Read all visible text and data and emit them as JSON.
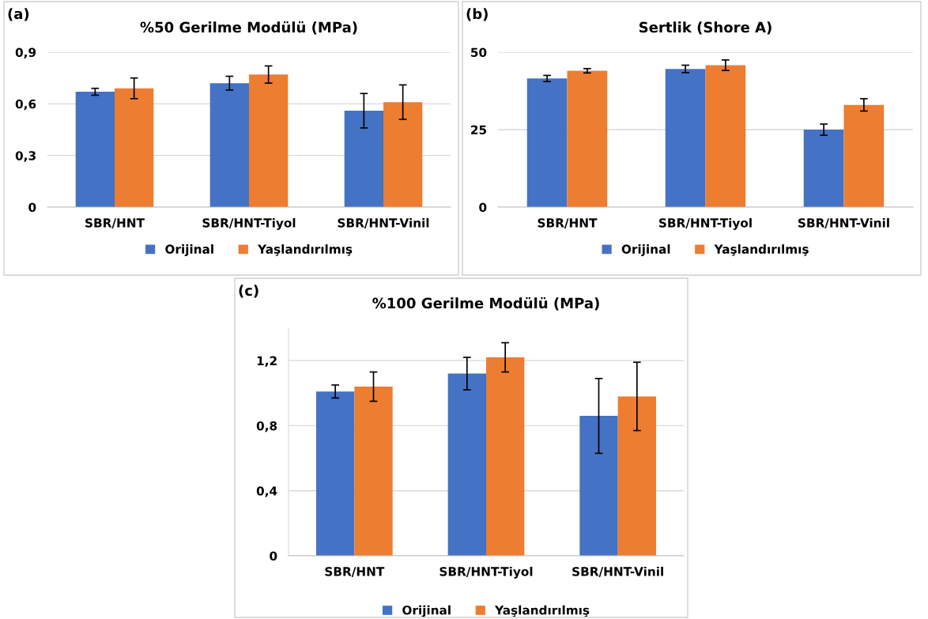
{
  "chart_data": [
    {
      "type": "bar",
      "title": "%50 Gerilme Modülü (MPa)",
      "annotations": [
        "(a)"
      ],
      "categories": [
        "SBR/HNT",
        "SBR/HNT-Tiyol",
        "SBR/HNT-Vinil"
      ],
      "series": [
        {
          "name": "Orijinal",
          "color": "#4472c4",
          "values": [
            0.67,
            0.72,
            0.56
          ],
          "errors": [
            0.02,
            0.04,
            0.1
          ]
        },
        {
          "name": "Yaşlandırılmış",
          "color": "#ed7d31",
          "values": [
            0.69,
            0.77,
            0.61
          ],
          "errors": [
            0.06,
            0.05,
            0.1
          ]
        }
      ],
      "ylim": [
        0,
        0.9
      ],
      "yticks": [
        0,
        {
          "value": 0.3,
          "label": "0,3"
        },
        {
          "value": 0.6,
          "label": "0,6"
        },
        {
          "value": 0.9,
          "label": "0,9"
        }
      ],
      "grid": "y",
      "legend": "bottom"
    },
    {
      "type": "bar",
      "title": "Sertlik (Shore A)",
      "annotations": [
        "(b)"
      ],
      "categories": [
        "SBR/HNT",
        "SBR/HNT-Tiyol",
        "SBR/HNT-Vinil"
      ],
      "series": [
        {
          "name": "Orijinal",
          "color": "#4472c4",
          "values": [
            41.5,
            44.6,
            25
          ],
          "errors": [
            1,
            1.2,
            1.8
          ]
        },
        {
          "name": "Yaşlandırılmış",
          "color": "#ed7d31",
          "values": [
            44,
            45.8,
            33
          ],
          "errors": [
            0.7,
            1.7,
            2
          ]
        }
      ],
      "ylim": [
        0,
        50
      ],
      "yticks": [
        0,
        25,
        50
      ],
      "grid": "y",
      "legend": "bottom"
    },
    {
      "type": "bar",
      "title": "%100 Gerilme Modülü (MPa)",
      "annotations": [
        "(c)"
      ],
      "categories": [
        "SBR/HNT",
        "SBR/HNT-Tiyol",
        "SBR/HNT-Vinil"
      ],
      "series": [
        {
          "name": "Orijinal",
          "color": "#4472c4",
          "values": [
            1.01,
            1.12,
            0.86
          ],
          "errors": [
            0.04,
            0.1,
            0.23
          ]
        },
        {
          "name": "Yaşlandırılmış",
          "color": "#ed7d31",
          "values": [
            1.04,
            1.22,
            0.98
          ],
          "errors": [
            0.09,
            0.09,
            0.21
          ]
        }
      ],
      "ylim": [
        0,
        1.4
      ],
      "yticks": [
        0,
        {
          "value": 0.4,
          "label": "0,4"
        },
        {
          "value": 0.8,
          "label": "0,8"
        },
        {
          "value": 1.2,
          "label": "1,2"
        }
      ],
      "grid": "y",
      "legend": "bottom"
    }
  ]
}
